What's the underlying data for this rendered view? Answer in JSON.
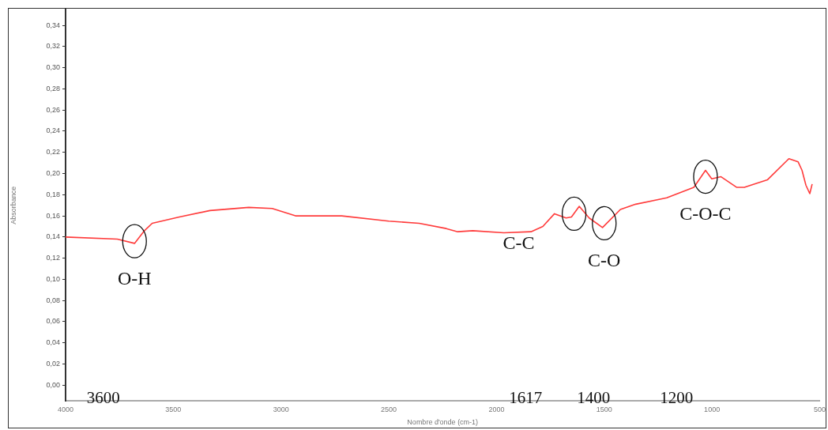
{
  "chart_data": {
    "type": "line",
    "xlabel": "Nombre d'onde (cm-1)",
    "ylabel": "Absorbance",
    "series": [
      {
        "color": "#ff3b3b",
        "x": [
          4000,
          3760,
          3680,
          3634,
          3598,
          3472,
          3330,
          3150,
          3041,
          2933,
          2718,
          2500,
          2359,
          2233,
          2180,
          2110,
          1966,
          1840,
          1785,
          1731,
          1677,
          1652,
          1616,
          1570,
          1508,
          1425,
          1354,
          1210,
          1084,
          1030,
          1001,
          958,
          886,
          850,
          743,
          643,
          600,
          582,
          564,
          546,
          535
        ],
        "values": [
          0.14,
          0.138,
          0.134,
          0.146,
          0.153,
          0.159,
          0.165,
          0.168,
          0.167,
          0.16,
          0.16,
          0.155,
          0.153,
          0.148,
          0.145,
          0.146,
          0.144,
          0.145,
          0.15,
          0.162,
          0.158,
          0.159,
          0.169,
          0.158,
          0.149,
          0.166,
          0.171,
          0.177,
          0.187,
          0.203,
          0.195,
          0.197,
          0.187,
          0.187,
          0.194,
          0.214,
          0.211,
          0.203,
          0.189,
          0.181,
          0.19
        ]
      }
    ],
    "xlim": [
      4000,
      500
    ],
    "xticks": [
      4000,
      3500,
      3000,
      2500,
      2000,
      1500,
      1000,
      500
    ],
    "ylim": [
      -0.015,
      0.355
    ],
    "yticks": [
      {
        "value": 0,
        "label": "0,00"
      },
      {
        "value": 0.02,
        "label": "0,02"
      },
      {
        "value": 0.04,
        "label": "0,04"
      },
      {
        "value": 0.06,
        "label": "0,06"
      },
      {
        "value": 0.08,
        "label": "0,08"
      },
      {
        "value": 0.1,
        "label": "0,10"
      },
      {
        "value": 0.12,
        "label": "0,12"
      },
      {
        "value": 0.14,
        "label": "0,14"
      },
      {
        "value": 0.16,
        "label": "0,16"
      },
      {
        "value": 0.18,
        "label": "0,18"
      },
      {
        "value": 0.2,
        "label": "0,20"
      },
      {
        "value": 0.22,
        "label": "0,22"
      },
      {
        "value": 0.24,
        "label": "0,24"
      },
      {
        "value": 0.26,
        "label": "0,26"
      },
      {
        "value": 0.28,
        "label": "0,28"
      },
      {
        "value": 0.3,
        "label": "0,30"
      },
      {
        "value": 0.32,
        "label": "0,32"
      },
      {
        "value": 0.34,
        "label": "0,34"
      }
    ],
    "grid": false,
    "legend": false,
    "marker": "none",
    "line_style": "solid",
    "annotations": [
      {
        "text": "O-H",
        "x": 3680,
        "y": 0.136
      },
      {
        "text": "C-C",
        "x": 1640,
        "y": 0.162
      },
      {
        "text": "C-O",
        "x": 1500,
        "y": 0.153
      },
      {
        "text": "C-O-C",
        "x": 1030,
        "y": 0.197
      },
      "3600",
      "1617",
      "1400",
      "1200"
    ]
  }
}
